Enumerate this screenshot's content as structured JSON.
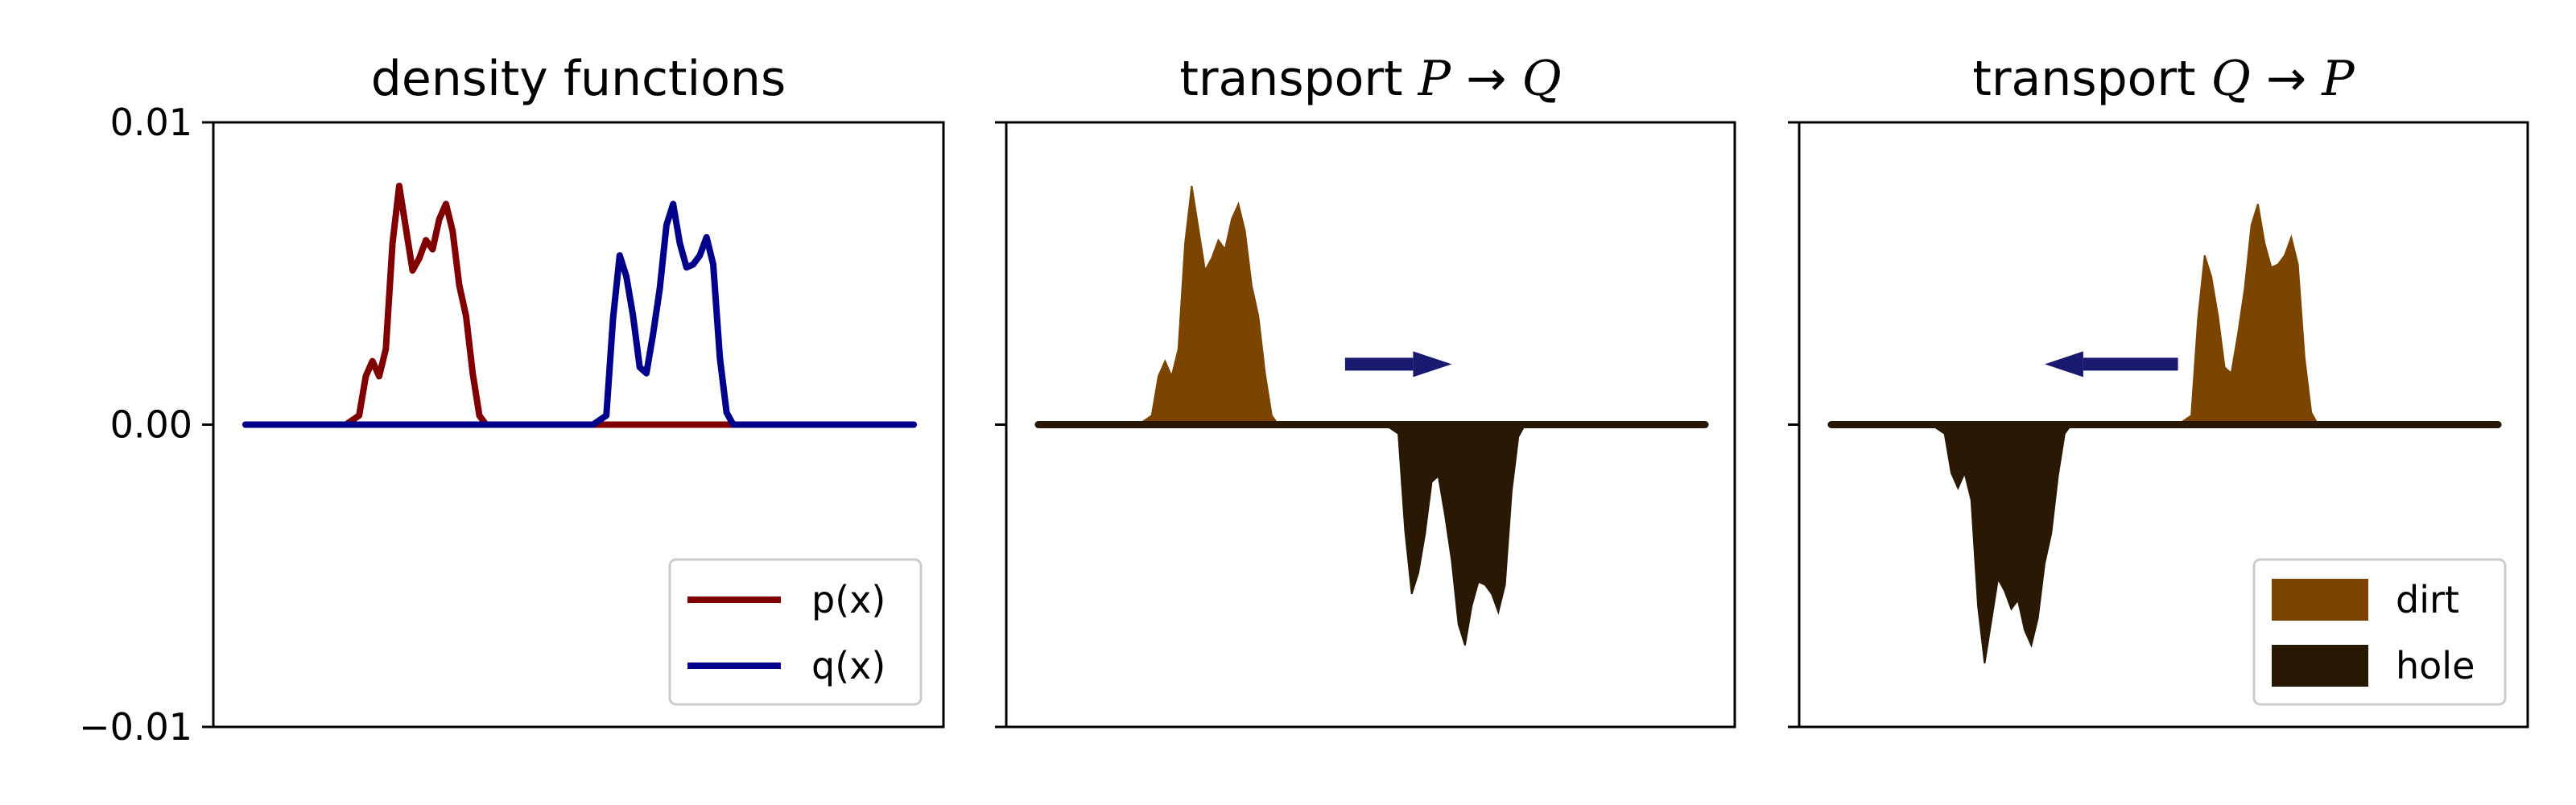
{
  "colors": {
    "p": "#800000",
    "q": "#00008b",
    "dirt": "#7b4500",
    "hole": "#291904",
    "arrow": "#191970",
    "axis": "#000000"
  },
  "chart_data": [
    {
      "type": "line",
      "title": "density functions",
      "xlim": [
        0,
        1
      ],
      "ylim": [
        -0.01,
        0.01
      ],
      "yticks": [
        {
          "value": 0.01,
          "label": "0.01"
        },
        {
          "value": 0.0,
          "label": "0.00"
        },
        {
          "value": -0.01,
          "label": "−0.01"
        }
      ],
      "show_xticks": false,
      "grid": false,
      "legend_position": "lower right",
      "series": [
        {
          "name": "p(x)",
          "color": "#800000",
          "x": [
            0.0,
            0.15,
            0.17,
            0.18,
            0.19,
            0.2,
            0.21,
            0.22,
            0.23,
            0.24,
            0.25,
            0.26,
            0.27,
            0.28,
            0.29,
            0.3,
            0.31,
            0.32,
            0.33,
            0.34,
            0.35,
            0.36,
            0.37,
            0.38,
            0.4,
            1.0
          ],
          "y": [
            0.0,
            0.0,
            0.0003,
            0.0016,
            0.0021,
            0.0016,
            0.0025,
            0.006,
            0.0079,
            0.0065,
            0.0051,
            0.0055,
            0.0061,
            0.0058,
            0.0068,
            0.0073,
            0.0064,
            0.0046,
            0.0036,
            0.0017,
            0.0003,
            0.0,
            0.0,
            0.0,
            0.0,
            0.0
          ]
        },
        {
          "name": "q(x)",
          "color": "#00008b",
          "x": [
            0.0,
            0.52,
            0.54,
            0.55,
            0.56,
            0.57,
            0.58,
            0.59,
            0.6,
            0.61,
            0.62,
            0.63,
            0.64,
            0.65,
            0.66,
            0.67,
            0.68,
            0.69,
            0.7,
            0.71,
            0.72,
            0.73,
            0.74,
            0.75,
            0.77,
            1.0
          ],
          "y": [
            0.0,
            0.0,
            0.0003,
            0.0035,
            0.0056,
            0.0049,
            0.0036,
            0.0019,
            0.0017,
            0.003,
            0.0045,
            0.0066,
            0.0073,
            0.006,
            0.0052,
            0.0053,
            0.0056,
            0.0062,
            0.0053,
            0.0022,
            0.0004,
            0.0,
            0.0,
            0.0,
            0.0,
            0.0
          ]
        }
      ],
      "legend": [
        {
          "label": "p(x)",
          "color": "#800000"
        },
        {
          "label": "q(x)",
          "color": "#00008b"
        }
      ]
    },
    {
      "type": "area",
      "title_parts": [
        "transport ",
        "P",
        " → ",
        "Q"
      ],
      "xlim": [
        0,
        1
      ],
      "ylim": [
        -0.01,
        0.01
      ],
      "show_xticks": false,
      "grid": false,
      "series": [
        {
          "name": "dirt",
          "source": 0,
          "sign": 1,
          "color": "#7b4500"
        },
        {
          "name": "hole",
          "source": 1,
          "sign": -1,
          "color": "#291904"
        }
      ],
      "arrow": {
        "direction": "right",
        "x_from": 0.46,
        "x_to": 0.62,
        "y": 0.002
      }
    },
    {
      "type": "area",
      "title_parts": [
        "transport ",
        "Q",
        " → ",
        "P"
      ],
      "xlim": [
        0,
        1
      ],
      "ylim": [
        -0.01,
        0.01
      ],
      "show_xticks": false,
      "grid": false,
      "legend_position": "lower right",
      "series": [
        {
          "name": "dirt",
          "source": 1,
          "sign": 1,
          "color": "#7b4500"
        },
        {
          "name": "hole",
          "source": 0,
          "sign": -1,
          "color": "#291904"
        }
      ],
      "arrow": {
        "direction": "left",
        "x_from": 0.52,
        "x_to": 0.32,
        "y": 0.002
      },
      "legend": [
        {
          "label": "dirt",
          "color": "#7b4500"
        },
        {
          "label": "hole",
          "color": "#291904"
        }
      ]
    }
  ]
}
